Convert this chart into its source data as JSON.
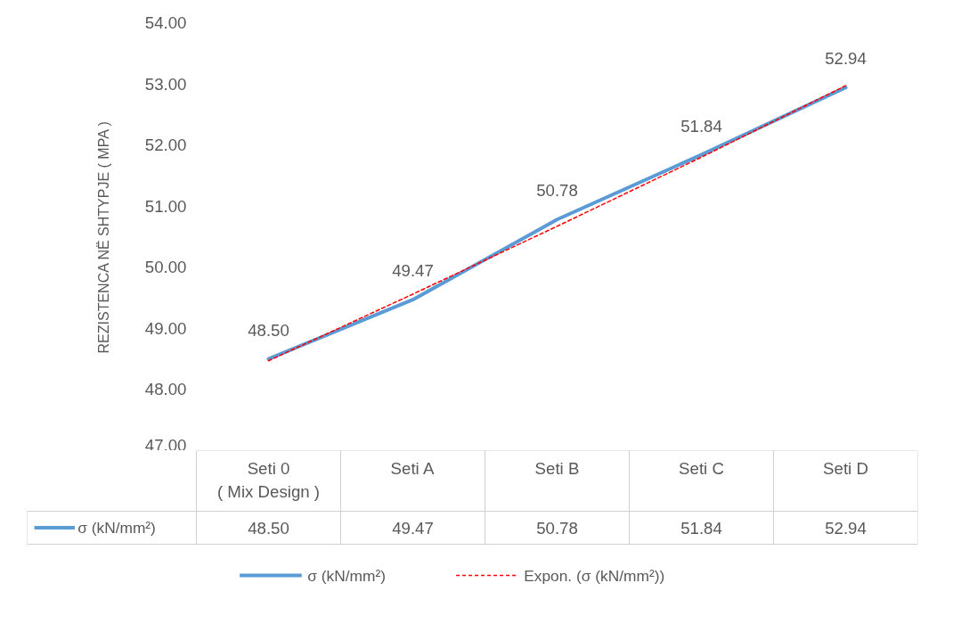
{
  "chart_data": {
    "type": "line",
    "ylabel": "REZISTENCA NË SHTYPJE ( MPA )",
    "categories": [
      "Seti 0\n( Mix Design )",
      "Seti A",
      "Seti B",
      "Seti C",
      "Seti D"
    ],
    "series": [
      {
        "name": "σ (kN/mm²)",
        "color": "#5b9bd5",
        "values": [
          48.5,
          49.47,
          50.78,
          51.84,
          52.94
        ],
        "value_labels": [
          "48.50",
          "49.47",
          "50.78",
          "51.84",
          "52.94"
        ],
        "line_style": "solid"
      },
      {
        "name": "Expon. (σ (kN/mm²))",
        "color": "#ff0000",
        "values": [
          48.47,
          49.56,
          50.67,
          51.8,
          52.97
        ],
        "line_style": "dashed"
      }
    ],
    "ylim": [
      47,
      54
    ],
    "yticks": [
      {
        "value": 47,
        "label": "47.00"
      },
      {
        "value": 48,
        "label": "48.00"
      },
      {
        "value": 49,
        "label": "49.00"
      },
      {
        "value": 50,
        "label": "50.00"
      },
      {
        "value": 51,
        "label": "51.00"
      },
      {
        "value": 52,
        "label": "52.00"
      },
      {
        "value": 53,
        "label": "53.00"
      },
      {
        "value": 54,
        "label": "54.00"
      }
    ],
    "grid": false,
    "legend": "bottom",
    "marker": "none"
  }
}
